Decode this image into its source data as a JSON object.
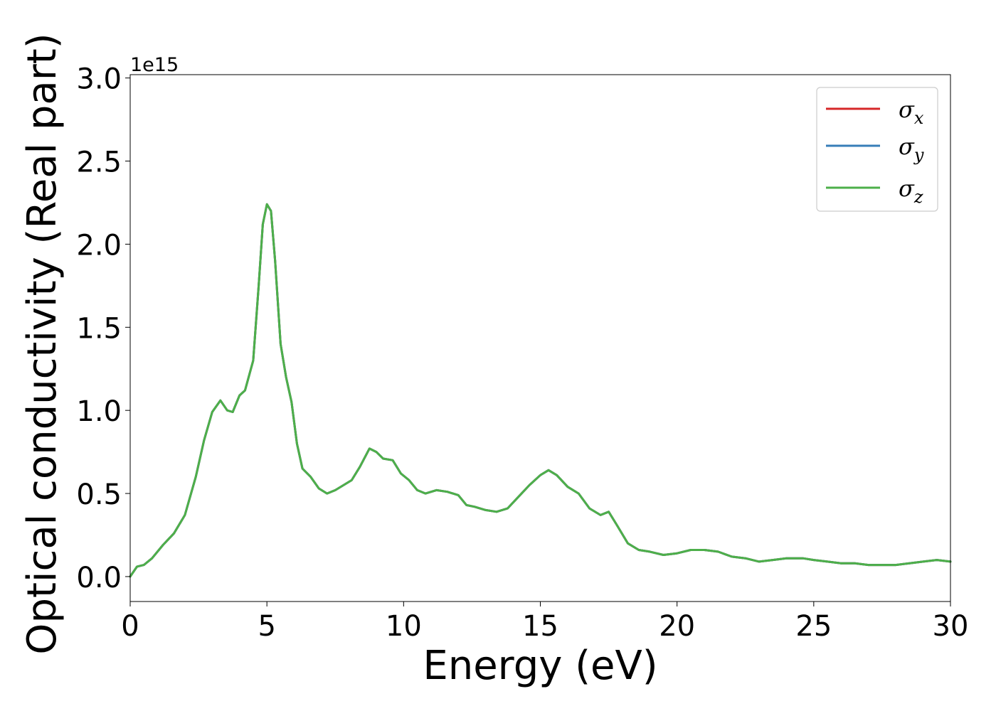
{
  "chart_data": {
    "type": "line",
    "xlabel": "Energy (eV)",
    "ylabel": "Optical conductivity (Real part)",
    "y_offset_text": "1e15",
    "xlim": [
      0,
      30
    ],
    "ylim": [
      -0.15,
      3.02
    ],
    "x_ticks": [
      0,
      5,
      10,
      15,
      20,
      25,
      30
    ],
    "x_tick_labels": [
      "0",
      "5",
      "10",
      "15",
      "20",
      "25",
      "30"
    ],
    "y_ticks": [
      0.0,
      0.5,
      1.0,
      1.5,
      2.0,
      2.5,
      3.0
    ],
    "y_tick_labels": [
      "0.0",
      "0.5",
      "1.0",
      "1.5",
      "2.0",
      "2.5",
      "3.0"
    ],
    "grid": false,
    "legend_position": "top-right",
    "x": [
      0,
      0.25,
      0.5,
      0.8,
      1.2,
      1.6,
      2.0,
      2.4,
      2.7,
      3.0,
      3.3,
      3.55,
      3.75,
      4.0,
      4.2,
      4.5,
      4.7,
      4.85,
      5.0,
      5.15,
      5.3,
      5.5,
      5.7,
      5.9,
      6.1,
      6.3,
      6.6,
      6.9,
      7.2,
      7.5,
      7.8,
      8.1,
      8.4,
      8.75,
      9.0,
      9.25,
      9.6,
      9.9,
      10.2,
      10.5,
      10.8,
      11.2,
      11.6,
      12.0,
      12.3,
      12.6,
      13.0,
      13.4,
      13.8,
      14.2,
      14.6,
      15.0,
      15.3,
      15.6,
      16.0,
      16.4,
      16.8,
      17.2,
      17.5,
      17.8,
      18.2,
      18.6,
      19.0,
      19.5,
      20.0,
      20.5,
      21.0,
      21.5,
      22.0,
      22.5,
      23.0,
      23.5,
      24.0,
      24.6,
      25.0,
      25.5,
      26.0,
      26.5,
      27.0,
      27.5,
      28.0,
      28.5,
      29.0,
      29.5,
      30.0
    ],
    "series": [
      {
        "name": "σx",
        "color": "#d62728",
        "values": [
          0.0,
          0.06,
          0.07,
          0.11,
          0.19,
          0.26,
          0.37,
          0.6,
          0.82,
          0.99,
          1.06,
          1.0,
          0.99,
          1.09,
          1.12,
          1.3,
          1.75,
          2.12,
          2.24,
          2.2,
          1.9,
          1.4,
          1.2,
          1.05,
          0.8,
          0.65,
          0.6,
          0.53,
          0.5,
          0.52,
          0.55,
          0.58,
          0.66,
          0.77,
          0.75,
          0.71,
          0.7,
          0.62,
          0.58,
          0.52,
          0.5,
          0.52,
          0.51,
          0.49,
          0.43,
          0.42,
          0.4,
          0.39,
          0.41,
          0.48,
          0.55,
          0.61,
          0.64,
          0.61,
          0.54,
          0.5,
          0.41,
          0.37,
          0.39,
          0.31,
          0.2,
          0.16,
          0.15,
          0.13,
          0.14,
          0.16,
          0.16,
          0.15,
          0.12,
          0.11,
          0.09,
          0.1,
          0.11,
          0.11,
          0.1,
          0.09,
          0.08,
          0.08,
          0.07,
          0.07,
          0.07,
          0.08,
          0.09,
          0.1,
          0.09
        ]
      },
      {
        "name": "σy",
        "color": "#377eb8",
        "values": [
          0.0,
          0.06,
          0.07,
          0.11,
          0.19,
          0.26,
          0.37,
          0.6,
          0.82,
          0.99,
          1.06,
          1.0,
          0.99,
          1.09,
          1.12,
          1.3,
          1.75,
          2.12,
          2.24,
          2.2,
          1.9,
          1.4,
          1.2,
          1.05,
          0.8,
          0.65,
          0.6,
          0.53,
          0.5,
          0.52,
          0.55,
          0.58,
          0.66,
          0.77,
          0.75,
          0.71,
          0.7,
          0.62,
          0.58,
          0.52,
          0.5,
          0.52,
          0.51,
          0.49,
          0.43,
          0.42,
          0.4,
          0.39,
          0.41,
          0.48,
          0.55,
          0.61,
          0.64,
          0.61,
          0.54,
          0.5,
          0.41,
          0.37,
          0.39,
          0.31,
          0.2,
          0.16,
          0.15,
          0.13,
          0.14,
          0.16,
          0.16,
          0.15,
          0.12,
          0.11,
          0.09,
          0.1,
          0.11,
          0.11,
          0.1,
          0.09,
          0.08,
          0.08,
          0.07,
          0.07,
          0.07,
          0.08,
          0.09,
          0.1,
          0.09
        ]
      },
      {
        "name": "σz",
        "color": "#4daf4a",
        "values": [
          0.0,
          0.06,
          0.07,
          0.11,
          0.19,
          0.26,
          0.37,
          0.6,
          0.82,
          0.99,
          1.06,
          1.0,
          0.99,
          1.09,
          1.12,
          1.3,
          1.75,
          2.12,
          2.24,
          2.2,
          1.9,
          1.4,
          1.2,
          1.05,
          0.8,
          0.65,
          0.6,
          0.53,
          0.5,
          0.52,
          0.55,
          0.58,
          0.66,
          0.77,
          0.75,
          0.71,
          0.7,
          0.62,
          0.58,
          0.52,
          0.5,
          0.52,
          0.51,
          0.49,
          0.43,
          0.42,
          0.4,
          0.39,
          0.41,
          0.48,
          0.55,
          0.61,
          0.64,
          0.61,
          0.54,
          0.5,
          0.41,
          0.37,
          0.39,
          0.31,
          0.2,
          0.16,
          0.15,
          0.13,
          0.14,
          0.16,
          0.16,
          0.15,
          0.12,
          0.11,
          0.09,
          0.1,
          0.11,
          0.11,
          0.1,
          0.09,
          0.08,
          0.08,
          0.07,
          0.07,
          0.07,
          0.08,
          0.09,
          0.1,
          0.09
        ]
      }
    ],
    "legend": {
      "entries": [
        {
          "symbol": "σ",
          "subscript": "x",
          "color": "#d62728"
        },
        {
          "symbol": "σ",
          "subscript": "y",
          "color": "#377eb8"
        },
        {
          "symbol": "σ",
          "subscript": "z",
          "color": "#4daf4a"
        }
      ]
    }
  }
}
